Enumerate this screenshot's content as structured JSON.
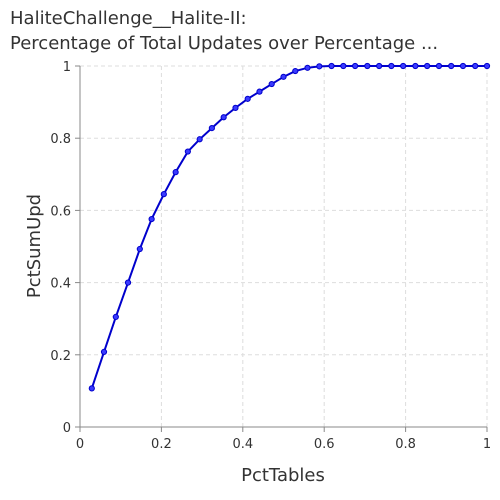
{
  "chart_data": {
    "type": "line",
    "title_lines": [
      "HaliteChallenge__Halite-II:",
      "Percentage of Total Updates over Percentage ..."
    ],
    "xlabel": "PctTables",
    "ylabel": "PctSumUpd",
    "xlim": [
      0,
      1
    ],
    "ylim": [
      0,
      1
    ],
    "x_ticks": [
      "0",
      "0.2",
      "0.4",
      "0.6",
      "0.8",
      "1"
    ],
    "y_ticks": [
      "0",
      "0.2",
      "0.4",
      "0.6",
      "0.8",
      "1"
    ],
    "grid": true,
    "legend": "none",
    "line_color": "#0000cc",
    "series": [
      {
        "x": [
          0.029,
          0.059,
          0.088,
          0.118,
          0.147,
          0.176,
          0.206,
          0.235,
          0.265,
          0.294,
          0.324,
          0.353,
          0.382,
          0.412,
          0.441,
          0.471,
          0.5,
          0.529,
          0.559,
          0.588,
          0.618,
          0.647,
          0.676,
          0.706,
          0.735,
          0.765,
          0.794,
          0.824,
          0.853,
          0.882,
          0.912,
          0.941,
          0.971,
          1.0
        ],
        "y": [
          0.107,
          0.208,
          0.305,
          0.4,
          0.493,
          0.576,
          0.645,
          0.706,
          0.763,
          0.797,
          0.828,
          0.858,
          0.884,
          0.909,
          0.929,
          0.95,
          0.97,
          0.986,
          0.995,
          0.999,
          1.0,
          1.0,
          1.0,
          1.0,
          1.0,
          1.0,
          1.0,
          1.0,
          1.0,
          1.0,
          1.0,
          1.0,
          1.0,
          1.0
        ]
      }
    ]
  }
}
